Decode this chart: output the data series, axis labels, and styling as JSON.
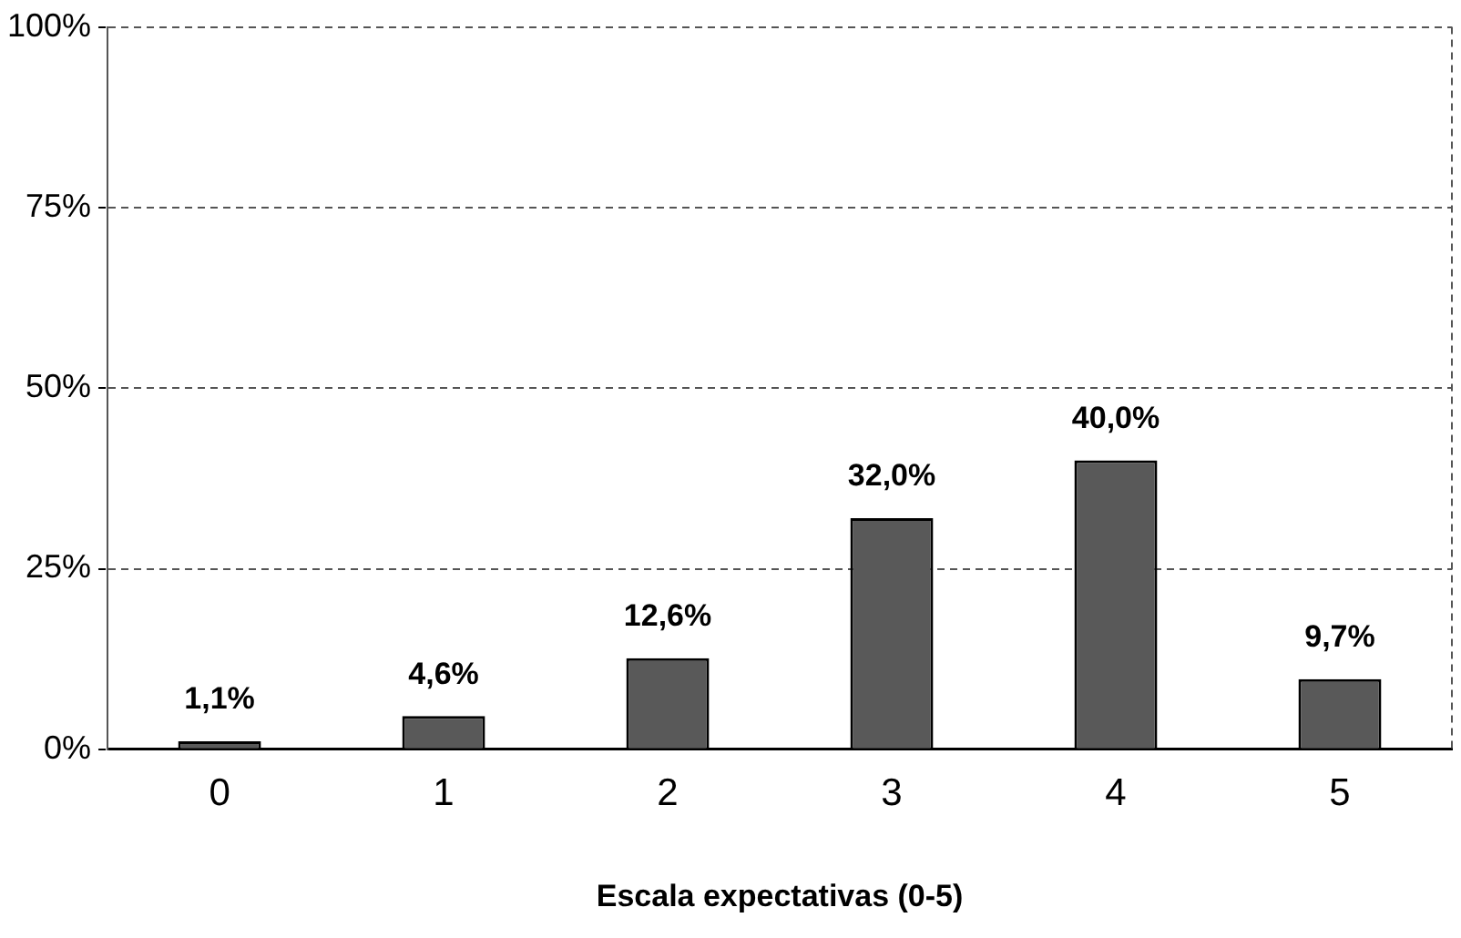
{
  "chart_data": {
    "type": "bar",
    "xlabel": "Escala expectativas (0-5)",
    "categories": [
      "0",
      "1",
      "2",
      "3",
      "4",
      "5"
    ],
    "values": [
      1.1,
      4.6,
      12.6,
      32.0,
      40.0,
      9.7
    ],
    "value_labels": [
      "1,1%",
      "4,6%",
      "12,6%",
      "32,0%",
      "40,0%",
      "9,7%"
    ],
    "color": "#595959",
    "ylim": [
      0,
      100
    ],
    "yticks": [
      {
        "value": 0,
        "label": "0%"
      },
      {
        "value": 25,
        "label": "25%"
      },
      {
        "value": 50,
        "label": "50%"
      },
      {
        "value": 75,
        "label": "75%"
      },
      {
        "value": 100,
        "label": "100%"
      }
    ],
    "grid": "y",
    "legend": false
  }
}
